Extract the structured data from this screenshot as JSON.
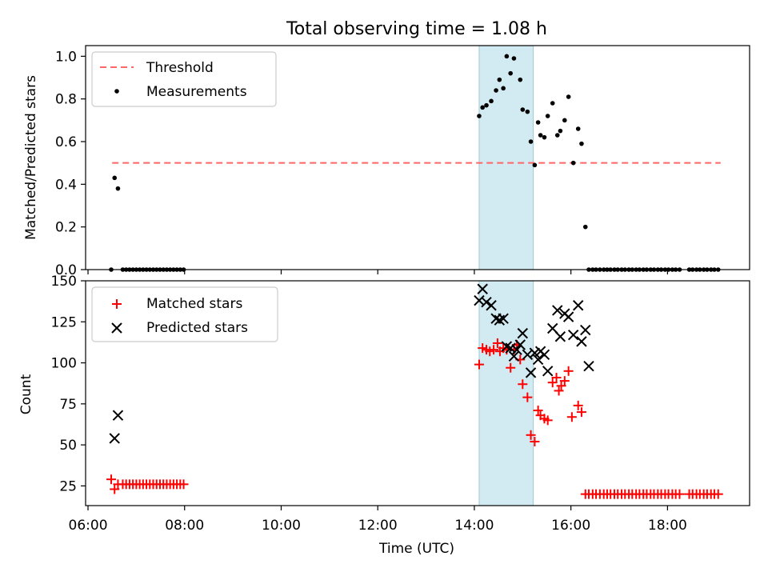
{
  "chart_data": {
    "type": "scatter",
    "title": "Total observing time = 1.08 h",
    "xlabel": "Time (UTC)",
    "x_ticks": [
      "06:00",
      "08:00",
      "10:00",
      "12:00",
      "14:00",
      "16:00",
      "18:00"
    ],
    "x_tick_hours": [
      6,
      8,
      10,
      12,
      14,
      16,
      18
    ],
    "xlim_hours": [
      5.95,
      19.7
    ],
    "highlight_span_hours": [
      14.1,
      15.22
    ],
    "highlight_color": "#add8e6",
    "panels": [
      {
        "ylabel": "Matched/Predicted stars",
        "ylim": [
          0,
          1.05
        ],
        "y_ticks": [
          "0.0",
          "0.2",
          "0.4",
          "0.6",
          "0.8",
          "1.0"
        ],
        "y_tick_values": [
          0,
          0.2,
          0.4,
          0.6,
          0.8,
          1.0
        ],
        "legend": [
          "Threshold",
          "Measurements"
        ],
        "threshold": {
          "name": "Threshold",
          "y": 0.5,
          "x_range_hours": [
            6.5,
            19.1
          ],
          "color": "#ff6666",
          "style": "dashed"
        },
        "measurements": {
          "name": "Measurements",
          "color": "#000000",
          "marker": "dot",
          "x_hours": [
            6.48,
            6.55,
            6.62,
            6.72,
            6.79,
            6.86,
            6.93,
            7.0,
            7.07,
            7.14,
            7.21,
            7.28,
            7.35,
            7.42,
            7.49,
            7.56,
            7.63,
            7.7,
            7.77,
            7.84,
            7.91,
            7.98,
            14.1,
            14.17,
            14.25,
            14.35,
            14.45,
            14.52,
            14.6,
            14.67,
            14.75,
            14.82,
            14.95,
            15.0,
            15.1,
            15.17,
            15.25,
            15.32,
            15.37,
            15.45,
            15.52,
            15.62,
            15.72,
            15.78,
            15.87,
            15.95,
            16.05,
            16.15,
            16.22,
            16.3,
            16.37,
            16.45,
            16.52,
            16.6,
            16.68,
            16.75,
            16.82,
            16.9,
            16.97,
            17.05,
            17.12,
            17.2,
            17.27,
            17.35,
            17.42,
            17.5,
            17.57,
            17.65,
            17.72,
            17.8,
            17.87,
            17.95,
            18.02,
            18.1,
            18.17,
            18.25,
            18.45,
            18.52,
            18.6,
            18.67,
            18.75,
            18.82,
            18.9,
            18.97,
            19.05
          ],
          "y": [
            0.0,
            0.43,
            0.38,
            0.0,
            0.0,
            0.0,
            0.0,
            0.0,
            0.0,
            0.0,
            0.0,
            0.0,
            0.0,
            0.0,
            0.0,
            0.0,
            0.0,
            0.0,
            0.0,
            0.0,
            0.0,
            0.0,
            0.72,
            0.76,
            0.77,
            0.79,
            0.84,
            0.89,
            0.85,
            1.0,
            0.92,
            0.99,
            0.89,
            0.75,
            0.74,
            0.6,
            0.49,
            0.69,
            0.63,
            0.62,
            0.72,
            0.78,
            0.63,
            0.65,
            0.7,
            0.81,
            0.5,
            0.66,
            0.59,
            0.2,
            0.0,
            0.0,
            0.0,
            0.0,
            0.0,
            0.0,
            0.0,
            0.0,
            0.0,
            0.0,
            0.0,
            0.0,
            0.0,
            0.0,
            0.0,
            0.0,
            0.0,
            0.0,
            0.0,
            0.0,
            0.0,
            0.0,
            0.0,
            0.0,
            0.0,
            0.0,
            0.0,
            0.0,
            0.0,
            0.0,
            0.0,
            0.0,
            0.0,
            0.0,
            0.0
          ]
        }
      },
      {
        "ylabel": "Count",
        "ylim": [
          13,
          150
        ],
        "y_ticks": [
          "25",
          "50",
          "75",
          "100",
          "125",
          "150"
        ],
        "y_tick_values": [
          25,
          50,
          75,
          100,
          125,
          150
        ],
        "legend": [
          "Matched stars",
          "Predicted stars"
        ],
        "series": [
          {
            "name": "Matched stars",
            "color": "#ff0000",
            "marker": "plus",
            "x_hours": [
              6.48,
              6.55,
              6.62,
              6.72,
              6.79,
              6.86,
              6.93,
              7.0,
              7.07,
              7.14,
              7.21,
              7.28,
              7.35,
              7.42,
              7.49,
              7.56,
              7.63,
              7.7,
              7.77,
              7.84,
              7.91,
              7.98,
              14.1,
              14.17,
              14.25,
              14.32,
              14.4,
              14.48,
              14.53,
              14.6,
              14.67,
              14.75,
              14.82,
              14.88,
              14.95,
              15.0,
              15.1,
              15.17,
              15.25,
              15.32,
              15.37,
              15.45,
              15.52,
              15.62,
              15.7,
              15.75,
              15.8,
              15.87,
              15.95,
              16.02,
              16.15,
              16.22,
              16.3,
              16.37,
              16.45,
              16.52,
              16.6,
              16.68,
              16.75,
              16.82,
              16.9,
              16.97,
              17.05,
              17.12,
              17.2,
              17.27,
              17.35,
              17.42,
              17.5,
              17.57,
              17.65,
              17.72,
              17.8,
              17.87,
              17.95,
              18.02,
              18.1,
              18.17,
              18.25,
              18.45,
              18.52,
              18.6,
              18.67,
              18.75,
              18.82,
              18.9,
              18.97,
              19.05
            ],
            "y": [
              29,
              23,
              26,
              26,
              26,
              26,
              26,
              26,
              26,
              26,
              26,
              26,
              26,
              26,
              26,
              26,
              26,
              26,
              26,
              26,
              26,
              26,
              99,
              109,
              108,
              107,
              108,
              112,
              107,
              109,
              108,
              97,
              108,
              111,
              102,
              87,
              79,
              56,
              52,
              71,
              68,
              66,
              65,
              88,
              91,
              83,
              86,
              89,
              95,
              67,
              74,
              70,
              20,
              20,
              20,
              20,
              20,
              20,
              20,
              20,
              20,
              20,
              20,
              20,
              20,
              20,
              20,
              20,
              20,
              20,
              20,
              20,
              20,
              20,
              20,
              20,
              20,
              20,
              20,
              20,
              20,
              20,
              20,
              20,
              20,
              20,
              20,
              20
            ]
          },
          {
            "name": "Predicted stars",
            "color": "#000000",
            "marker": "x",
            "x_hours": [
              6.55,
              6.62,
              14.1,
              14.17,
              14.25,
              14.35,
              14.45,
              14.52,
              14.6,
              14.67,
              14.75,
              14.82,
              14.88,
              14.95,
              15.0,
              15.1,
              15.17,
              15.25,
              15.32,
              15.37,
              15.45,
              15.52,
              15.62,
              15.72,
              15.78,
              15.87,
              15.95,
              16.05,
              16.15,
              16.22,
              16.3,
              16.37
            ],
            "y": [
              54,
              68,
              138,
              145,
              137,
              135,
              127,
              126,
              127,
              110,
              109,
              104,
              108,
              111,
              118,
              105,
              94,
              106,
              102,
              107,
              105,
              95,
              121,
              132,
              116,
              130,
              128,
              117,
              135,
              113,
              120,
              98
            ]
          }
        ]
      }
    ]
  }
}
